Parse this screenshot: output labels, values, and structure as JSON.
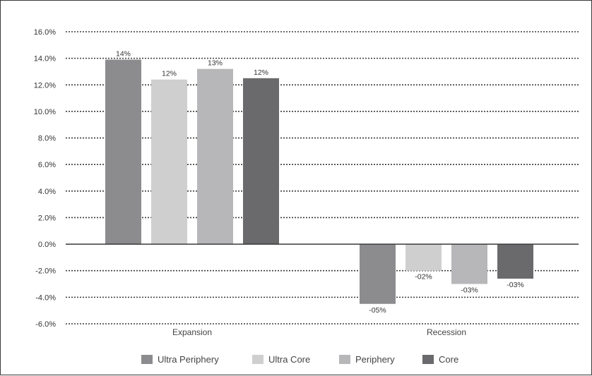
{
  "chart_data": {
    "type": "bar",
    "categories": [
      "Expansion",
      "Recession"
    ],
    "series": [
      {
        "name": "Ultra Periphery",
        "color": "#8c8c8e",
        "values": [
          13.9,
          -4.5
        ],
        "labels": [
          "14%",
          "-05%"
        ]
      },
      {
        "name": "Ultra Core",
        "color": "#cfcfd0",
        "values": [
          12.4,
          -2.0
        ],
        "labels": [
          "12%",
          "-02%"
        ]
      },
      {
        "name": "Periphery",
        "color": "#b7b7b9",
        "values": [
          13.2,
          -3.0
        ],
        "labels": [
          "13%",
          "-03%"
        ]
      },
      {
        "name": "Core",
        "color": "#6a6a6c",
        "values": [
          12.5,
          -2.6
        ],
        "labels": [
          "12%",
          "-03%"
        ]
      }
    ],
    "ylim": [
      -6,
      16
    ],
    "yticks": [
      16,
      14,
      12,
      10,
      8,
      6,
      4,
      2,
      0,
      -2,
      -4,
      -6
    ],
    "ytick_labels": [
      "16.0%",
      "14.0%",
      "12.0%",
      "10.0%",
      "8.0%",
      "6.0%",
      "4.0%",
      "2.0%",
      "0.0%",
      "-2.0%",
      "-4.0%",
      "-6.0%"
    ],
    "grid": true,
    "grid_style": "dotted",
    "legend_position": "bottom-center",
    "title": "",
    "xlabel": "",
    "ylabel": ""
  }
}
